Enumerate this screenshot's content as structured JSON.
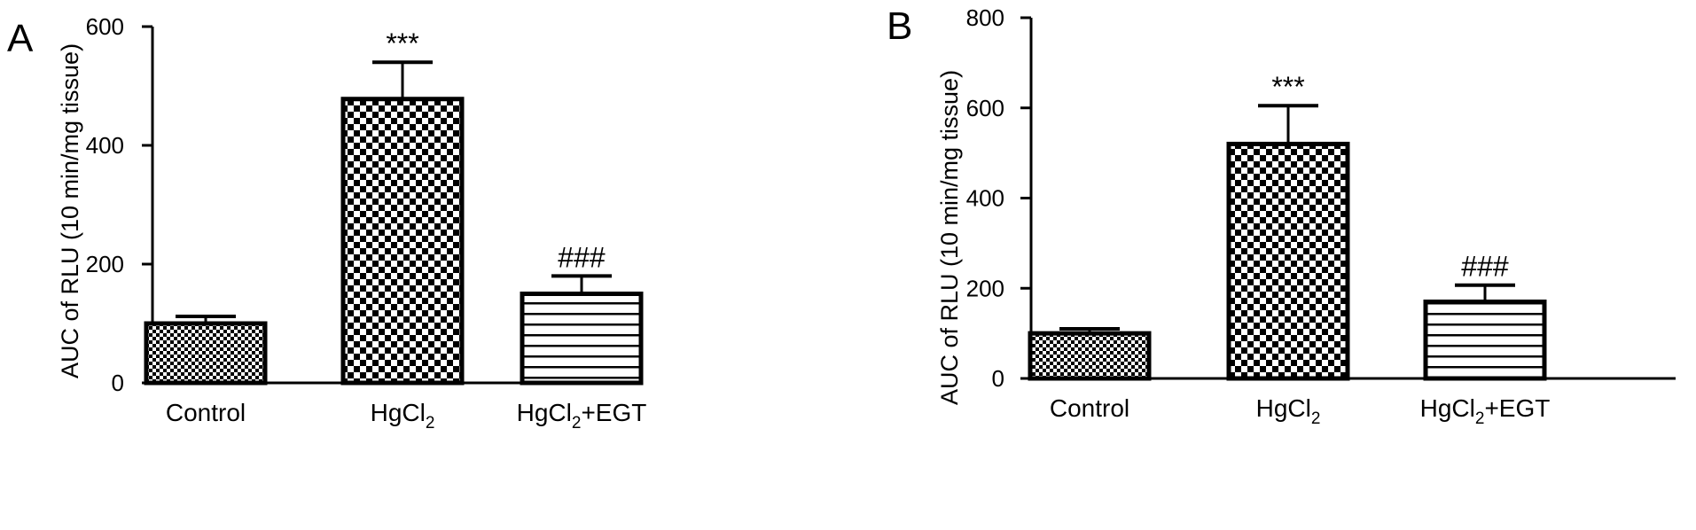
{
  "chart_data": [
    {
      "panel": "A",
      "type": "bar",
      "categories": [
        {
          "main": "Control",
          "sub": "",
          "rest": ""
        },
        {
          "main": "HgCl",
          "sub": "2",
          "rest": ""
        },
        {
          "main": "HgCl",
          "sub": "2",
          "rest": "+EGT"
        }
      ],
      "values": [
        100,
        478,
        150
      ],
      "errors": [
        12,
        62,
        30
      ],
      "annotations": [
        "",
        "***",
        "###"
      ],
      "patterns": [
        "fine-check",
        "coarse-check",
        "horizontal-lines"
      ],
      "ylabel": "AUC of RLU (10 min/mg tissue)",
      "ylim": [
        0,
        600
      ],
      "yticks": [
        0,
        200,
        400,
        600
      ],
      "grid": false,
      "colors": {
        "bar_edge": "#000000",
        "fill_bg": "#ffffff",
        "fill_pattern": "#000000"
      }
    },
    {
      "panel": "B",
      "type": "bar",
      "categories": [
        {
          "main": "Control",
          "sub": "",
          "rest": ""
        },
        {
          "main": "HgCl",
          "sub": "2",
          "rest": ""
        },
        {
          "main": "HgCl",
          "sub": "2",
          "rest": "+EGT"
        }
      ],
      "values": [
        100,
        520,
        170
      ],
      "errors": [
        10,
        85,
        37
      ],
      "annotations": [
        "",
        "***",
        "###"
      ],
      "patterns": [
        "fine-check",
        "coarse-check",
        "horizontal-lines"
      ],
      "ylabel": "AUC of RLU (10 min/mg tissue)",
      "ylim": [
        0,
        800
      ],
      "yticks": [
        0,
        200,
        400,
        600,
        800
      ],
      "grid": false,
      "colors": {
        "bar_edge": "#000000",
        "fill_bg": "#ffffff",
        "fill_pattern": "#000000"
      }
    }
  ]
}
